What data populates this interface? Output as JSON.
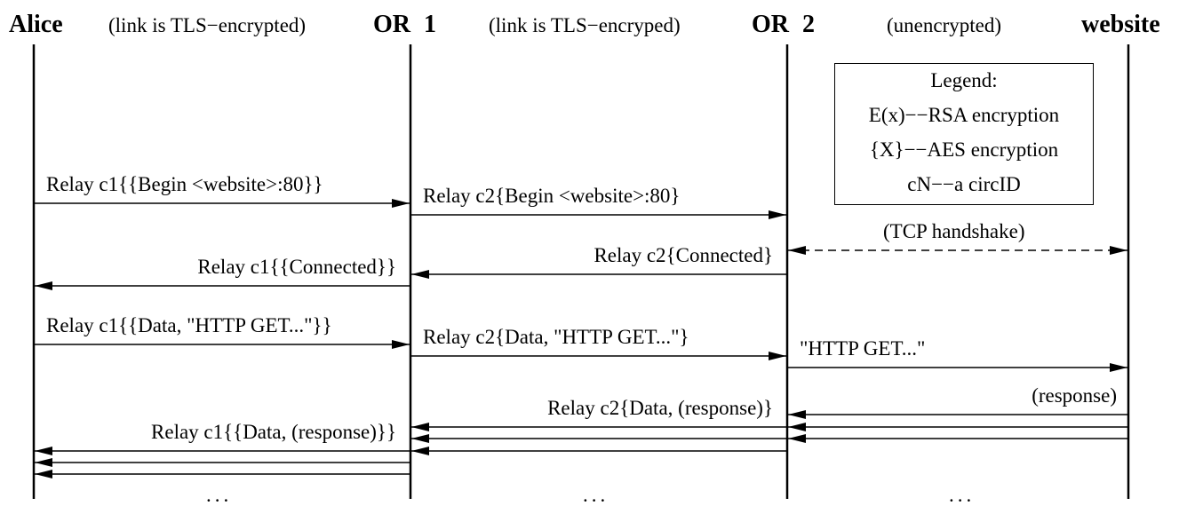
{
  "participants": {
    "alice": "Alice",
    "or1": "OR 1",
    "or2": "OR 2",
    "website": "website"
  },
  "link_notes": {
    "alice_or1": "(link is TLS−encrypted)",
    "or1_or2": "(link is TLS−encryped)",
    "or2_website": "(unencrypted)"
  },
  "legend": {
    "title": "Legend:",
    "line1": "E(x)−−RSA encryption",
    "line2": "{X}−−AES encryption",
    "line3": "cN−−a circID"
  },
  "messages": {
    "begin_c1": "Relay c1{{Begin <website>:80}}",
    "begin_c2": "Relay c2{Begin <website>:80}",
    "tcp_handshake": "(TCP handshake)",
    "connected_c2": "Relay c2{Connected}",
    "connected_c1": "Relay c1{{Connected}}",
    "data_get_c1": "Relay c1{{Data, \"HTTP GET...\"}}",
    "data_get_c2": "Relay c2{Data, \"HTTP GET...\"}",
    "http_get": "\"HTTP GET...\"",
    "response": "(response)",
    "data_resp_c2": "Relay c2{Data, (response)}",
    "data_resp_c1": "Relay c1{{Data, (response)}}"
  },
  "continuation": "..."
}
